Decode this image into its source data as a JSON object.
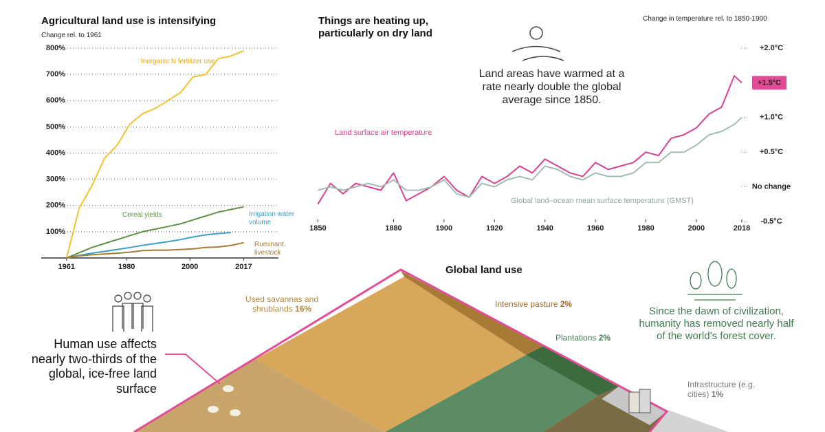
{
  "chart_data": [
    {
      "type": "line",
      "title": "Agricultural land use is intensifying",
      "y_label": "Change rel. to 1961",
      "x": [
        1961,
        1965,
        1969,
        1973,
        1977,
        1981,
        1985,
        1989,
        1993,
        1997,
        2001,
        2005,
        2009,
        2013,
        2017
      ],
      "xlim": [
        1953,
        2028
      ],
      "xticks": [
        1961,
        1980,
        2000,
        2017
      ],
      "ylim": [
        0,
        800
      ],
      "yticks": [
        {
          "value": 100,
          "label": "100%"
        },
        {
          "value": 200,
          "label": "200%"
        },
        {
          "value": 300,
          "label": "300%"
        },
        {
          "value": 400,
          "label": "400%"
        },
        {
          "value": 500,
          "label": "500%"
        },
        {
          "value": 600,
          "label": "600%"
        },
        {
          "value": 700,
          "label": "700%"
        },
        {
          "value": 800,
          "label": "800%"
        }
      ],
      "grid": true,
      "series": [
        {
          "name": "Inorganic N fertilizer use",
          "color": "#f2c230",
          "values": [
            0,
            190,
            275,
            380,
            430,
            510,
            550,
            570,
            600,
            630,
            690,
            700,
            760,
            770,
            790
          ]
        },
        {
          "name": "Cereal yields",
          "color": "#5f8f45",
          "values": [
            0,
            20,
            40,
            55,
            70,
            85,
            100,
            110,
            120,
            130,
            145,
            160,
            175,
            185,
            195
          ]
        },
        {
          "name": "Irrigation water volume",
          "color": "#3a9fc6",
          "values": [
            0,
            10,
            18,
            25,
            32,
            40,
            48,
            55,
            62,
            70,
            80,
            88,
            93,
            97,
            null
          ]
        },
        {
          "name": "Ruminant livestock",
          "color": "#a47c35",
          "values": [
            0,
            8,
            12,
            15,
            18,
            22,
            28,
            30,
            30,
            32,
            35,
            40,
            42,
            48,
            58
          ]
        }
      ]
    },
    {
      "type": "line",
      "title": "Things are heating up, particularly on dry land",
      "y_label": "Change in temperature rel. to 1850-1900",
      "annotation": "Land areas have warmed at a rate nearly double the global average since 1850.",
      "callout": {
        "value": 1.5,
        "label": "+1.5°C"
      },
      "x": [
        1850,
        1855,
        1860,
        1865,
        1870,
        1875,
        1880,
        1885,
        1890,
        1895,
        1900,
        1905,
        1910,
        1915,
        1920,
        1925,
        1930,
        1935,
        1940,
        1945,
        1950,
        1955,
        1960,
        1965,
        1970,
        1975,
        1980,
        1985,
        1990,
        1995,
        2000,
        2005,
        2010,
        2015,
        2018
      ],
      "xlim": [
        1848,
        2021
      ],
      "xticks": [
        1850,
        1880,
        1900,
        1920,
        1940,
        1960,
        1980,
        2000,
        2018
      ],
      "ylim": [
        -0.5,
        2.0
      ],
      "yticks": [
        {
          "value": 2.0,
          "label": "+2.0°C"
        },
        {
          "value": 1.0,
          "label": "+1.0°C"
        },
        {
          "value": 0.5,
          "label": "+0.5°C"
        },
        {
          "value": 0,
          "label": "No change"
        },
        {
          "value": -0.5,
          "label": "-0.5°C"
        }
      ],
      "series": [
        {
          "name": "Land surface air temperature",
          "color": "#d8418e",
          "values": [
            -0.25,
            0.05,
            -0.1,
            0.05,
            0.0,
            -0.05,
            0.2,
            -0.2,
            -0.1,
            0.0,
            0.15,
            -0.05,
            -0.15,
            0.15,
            0.05,
            0.15,
            0.3,
            0.2,
            0.4,
            0.3,
            0.2,
            0.15,
            0.35,
            0.25,
            0.3,
            0.35,
            0.5,
            0.45,
            0.7,
            0.75,
            0.85,
            1.05,
            1.15,
            1.6,
            1.5
          ]
        },
        {
          "name": "Global land–ocean mean surface temperature (GMST)",
          "color": "#a3bcb2",
          "values": [
            -0.05,
            0.0,
            -0.05,
            0.0,
            0.05,
            0.0,
            0.1,
            -0.05,
            -0.05,
            0.0,
            0.1,
            -0.1,
            -0.15,
            0.05,
            0.0,
            0.1,
            0.15,
            0.1,
            0.3,
            0.25,
            0.15,
            0.1,
            0.2,
            0.15,
            0.15,
            0.2,
            0.35,
            0.35,
            0.5,
            0.5,
            0.6,
            0.75,
            0.8,
            0.9,
            1.0
          ]
        }
      ]
    }
  ],
  "land_use": {
    "title": "Global land use",
    "headline": "Human use affects nearly two-thirds of the global, ice-free land surface",
    "forest_note": "Since the dawn of civilization, humanity has removed nearly half of the world’s forest cover.",
    "items": [
      {
        "label": "Used savannas and shrublands",
        "share": "16%"
      },
      {
        "label": "Intensive pasture",
        "share": "2%"
      },
      {
        "label": "Plantations",
        "share": "2%"
      },
      {
        "label": "Infrastructure (e.g. cities)",
        "share": "1%"
      }
    ]
  }
}
